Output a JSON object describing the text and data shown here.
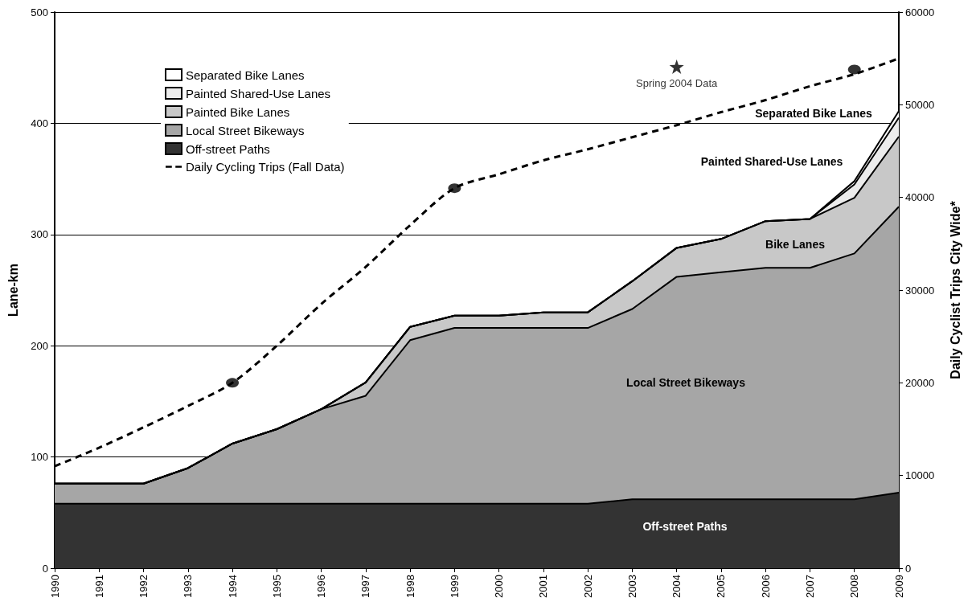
{
  "chart_data": {
    "type": "area",
    "stacked": true,
    "xlabel": null,
    "ylabel": "Lane-km",
    "y2label": "Daily Cyclist Trips City Wide*",
    "categories": [
      "1990",
      "1991",
      "1992",
      "1993",
      "1994",
      "1995",
      "1996",
      "1997",
      "1998",
      "1999",
      "2000",
      "2001",
      "2002",
      "2003",
      "2004",
      "2005",
      "2006",
      "2007",
      "2008",
      "2009"
    ],
    "series": [
      {
        "name": "Off-street Paths",
        "color": "#333333",
        "values": [
          58,
          58,
          58,
          58,
          58,
          58,
          58,
          58,
          58,
          58,
          58,
          58,
          58,
          62,
          62,
          62,
          62,
          62,
          62,
          68
        ]
      },
      {
        "name": "Local Street Bikeways",
        "color": "#a6a6a6",
        "values": [
          18,
          18,
          18,
          32,
          54,
          67,
          85,
          97,
          147,
          158,
          158,
          158,
          158,
          171,
          200,
          204,
          208,
          208,
          221,
          257
        ]
      },
      {
        "name": "Painted Bike Lanes",
        "color": "#c8c8c8",
        "values": [
          0,
          0,
          0,
          0,
          0,
          0,
          0,
          12,
          12,
          11,
          11,
          14,
          14,
          25,
          26,
          30,
          42,
          44,
          50,
          63
        ]
      },
      {
        "name": "Painted Shared-Use Lanes",
        "color": "#ececec",
        "values": [
          0,
          0,
          0,
          0,
          0,
          0,
          0,
          0,
          0,
          0,
          0,
          0,
          0,
          0,
          0,
          0,
          0,
          0,
          12,
          17
        ]
      },
      {
        "name": "Separated Bike Lanes",
        "color": "#ffffff",
        "values": [
          0,
          0,
          0,
          0,
          0,
          0,
          0,
          0,
          0,
          0,
          0,
          0,
          0,
          0,
          0,
          0,
          0,
          0,
          3,
          6
        ]
      },
      {
        "name": "Daily Cycling Trips (Fall Data)",
        "type": "line",
        "axis": "y2",
        "color": "#000000",
        "line_style": "dashed",
        "marker": "none",
        "values": [
          11000,
          13000,
          15200,
          17500,
          20000,
          24000,
          28500,
          32500,
          37000,
          41000,
          42500,
          44000,
          45200,
          46500,
          47800,
          49200,
          50500,
          52000,
          53300,
          55000
        ]
      },
      {
        "type": "scatter",
        "axis": "y2",
        "color": "#000000",
        "marker": "circle",
        "values": [
          null,
          null,
          null,
          null,
          20000,
          null,
          null,
          null,
          null,
          41000,
          null,
          null,
          null,
          null,
          null,
          null,
          null,
          null,
          53800,
          null
        ]
      },
      {
        "name": "Spring 2004 Data",
        "type": "scatter",
        "axis": "y2",
        "color": "#000000",
        "marker": "star",
        "values": [
          null,
          null,
          null,
          null,
          null,
          null,
          null,
          null,
          null,
          null,
          null,
          null,
          null,
          null,
          54100,
          null,
          null,
          null,
          null,
          null
        ]
      }
    ],
    "ylim": [
      0,
      500
    ],
    "yticks": [
      0,
      100,
      200,
      300,
      400,
      500
    ],
    "y2lim": [
      0,
      60000
    ],
    "y2ticks": [
      0,
      10000,
      20000,
      30000,
      40000,
      50000,
      60000
    ],
    "grid": "y",
    "legend": "top left",
    "annotations": [
      "Separated Bike Lanes",
      "Painted Shared-Use Lanes",
      "Bike Lanes",
      "Local Street Bikeways",
      "Off-street Paths"
    ]
  }
}
